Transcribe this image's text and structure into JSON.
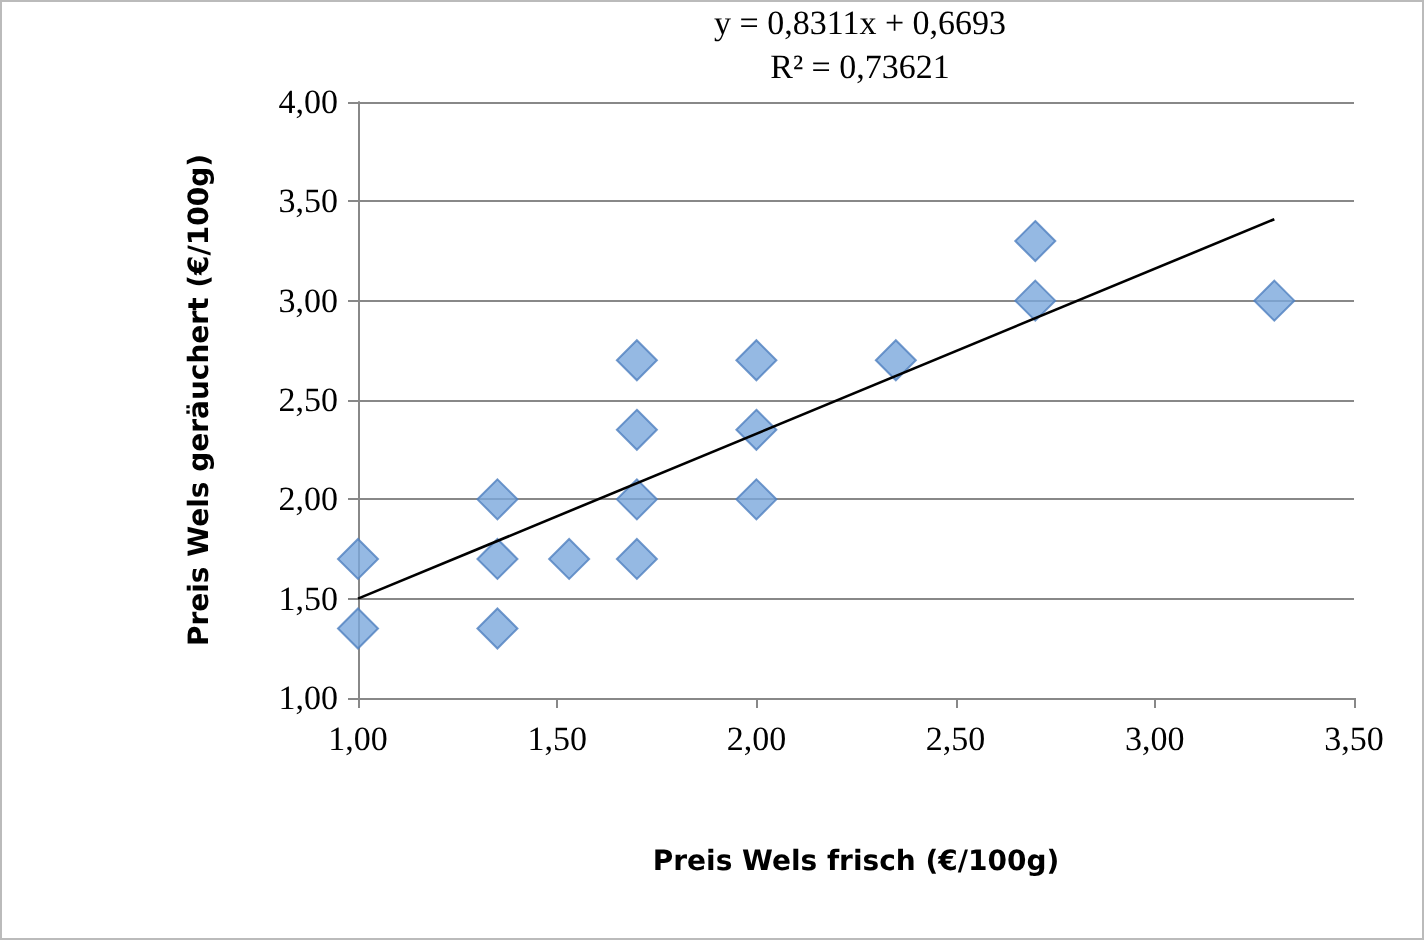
{
  "chart_data": {
    "type": "scatter",
    "xlabel": "Preis Wels frisch (€/100g)",
    "ylabel": "Preis Wels geräuchert (€/100g)",
    "annotations": [
      "y = 0,8311x + 0,6693",
      "R² = 0,73621"
    ],
    "series": [
      {
        "color": "#7ba7dc",
        "marker": "diamond",
        "x": [
          1.0,
          1.0,
          1.35,
          1.35,
          1.35,
          1.53,
          1.7,
          1.7,
          1.7,
          1.7,
          2.0,
          2.0,
          2.0,
          2.35,
          2.7,
          2.7,
          3.3
        ],
        "values": [
          1.7,
          1.35,
          2.0,
          1.7,
          1.35,
          1.7,
          2.7,
          2.35,
          2.0,
          1.7,
          2.7,
          2.35,
          2.0,
          2.7,
          3.3,
          3.0,
          3.0
        ]
      },
      {
        "type": "line",
        "color": "#000000",
        "marker": "none",
        "x": [
          1.0,
          3.3
        ],
        "values": [
          1.5,
          3.41
        ]
      }
    ],
    "xlim": [
      1,
      3.5
    ],
    "xticks": [
      {
        "value": 1,
        "label": "1,00"
      },
      {
        "value": 1.5,
        "label": "1,50"
      },
      {
        "value": 2,
        "label": "2,00"
      },
      {
        "value": 2.5,
        "label": "2,50"
      },
      {
        "value": 3,
        "label": "3,00"
      },
      {
        "value": 3.5,
        "label": "3,50"
      }
    ],
    "ylim": [
      1,
      4
    ],
    "yticks": [
      {
        "value": 1,
        "label": "1,00"
      },
      {
        "value": 1.5,
        "label": "1,50"
      },
      {
        "value": 2,
        "label": "2,00"
      },
      {
        "value": 2.5,
        "label": "2,50"
      },
      {
        "value": 3,
        "label": "3,00"
      },
      {
        "value": 3.5,
        "label": "3,50"
      },
      {
        "value": 4,
        "label": "4,00"
      }
    ],
    "grid": "y"
  }
}
